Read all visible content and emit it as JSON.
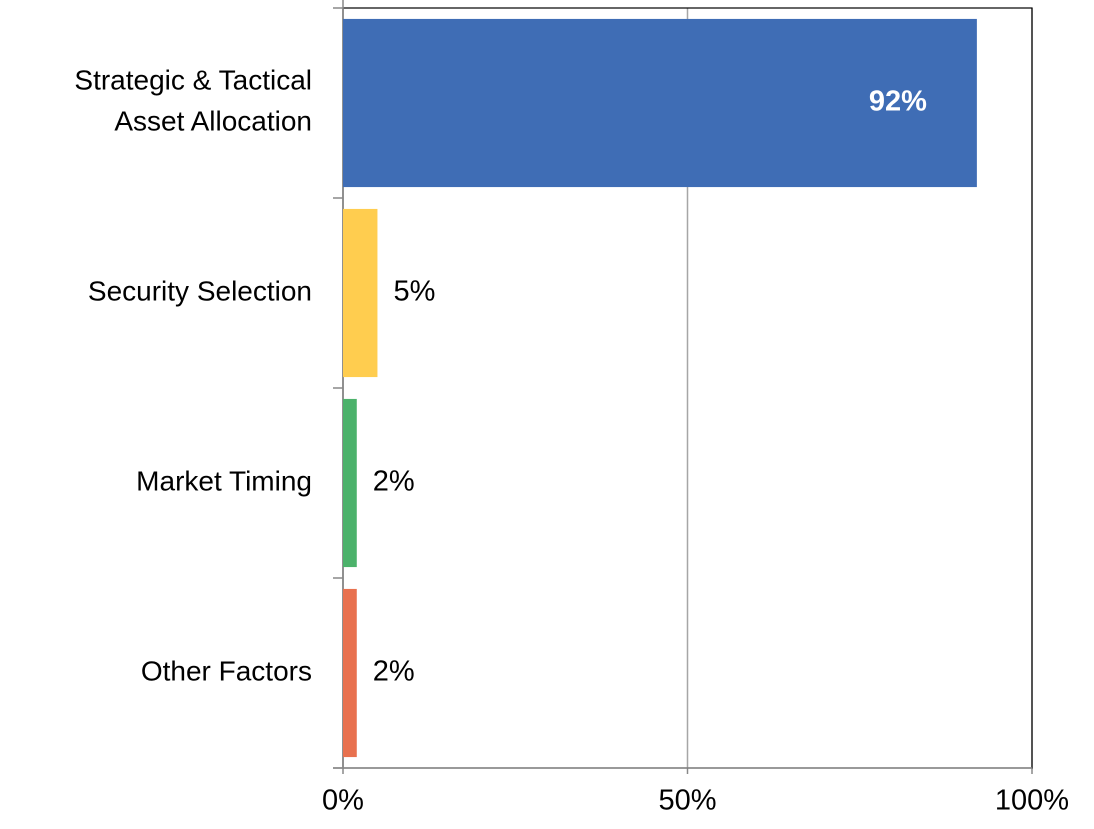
{
  "chart_data": {
    "type": "bar",
    "orientation": "horizontal",
    "categories": [
      "Strategic & Tactical\nAsset Allocation",
      "Security Selection",
      "Market Timing",
      "Other Factors"
    ],
    "values": [
      92,
      5,
      2,
      2
    ],
    "value_labels": [
      "92%",
      "5%",
      "2%",
      "2%"
    ],
    "colors": [
      "#3f6db5",
      "#ffcd4f",
      "#4cb26b",
      "#e8714f"
    ],
    "xlim": [
      0,
      100
    ],
    "xticks": [
      {
        "value": 0,
        "label": "0%"
      },
      {
        "value": 50,
        "label": "50%"
      },
      {
        "value": 100,
        "label": "100%"
      }
    ],
    "grid": true
  }
}
